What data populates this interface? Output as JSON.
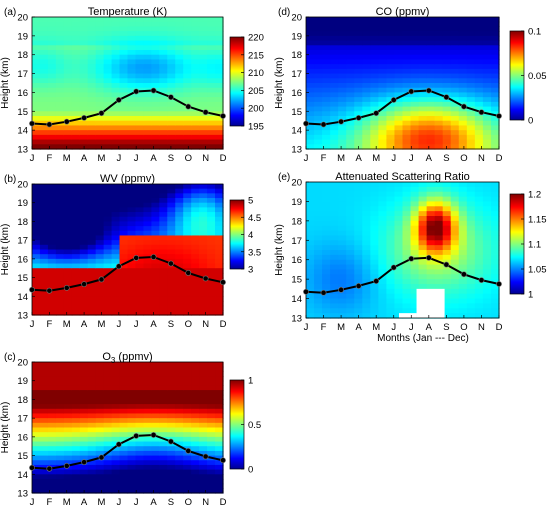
{
  "months": [
    "J",
    "F",
    "M",
    "A",
    "M",
    "J",
    "J",
    "A",
    "S",
    "O",
    "N",
    "D"
  ],
  "common": {
    "ylabel": "Height (km)",
    "ylim": [
      13,
      20
    ],
    "yticks": [
      13,
      14,
      15,
      16,
      17,
      18,
      19,
      20
    ],
    "tropopause": [
      14.35,
      14.3,
      14.45,
      14.65,
      14.9,
      15.6,
      16.05,
      16.1,
      15.75,
      15.25,
      14.95,
      14.75
    ]
  },
  "x_axis_label": "Months (Jan --- Dec)",
  "chart_data": [
    {
      "type": "heatmap",
      "panel": "(a)",
      "title": "Temperature (K)",
      "colorbar": {
        "range": [
          195,
          220
        ],
        "ticks": [
          195,
          200,
          205,
          210,
          215,
          220
        ]
      }
    },
    {
      "type": "heatmap",
      "panel": "(b)",
      "title": "WV  (ppmv)",
      "colorbar": {
        "range": [
          3,
          5
        ],
        "ticks": [
          3,
          3.5,
          4,
          4.5,
          5
        ]
      }
    },
    {
      "type": "heatmap",
      "panel": "(c)",
      "title": "O3 (ppmv)",
      "title_main": "O",
      "title_sub": "3",
      "title_unit": " (ppmv)",
      "colorbar": {
        "range": [
          0,
          1
        ],
        "ticks": [
          0,
          0.5,
          1
        ]
      }
    },
    {
      "type": "heatmap",
      "panel": "(d)",
      "title": "CO (ppmv)",
      "colorbar": {
        "range": [
          0,
          0.1
        ],
        "ticks": [
          0,
          0.05,
          0.1
        ]
      }
    },
    {
      "type": "heatmap",
      "panel": "(e)",
      "title": "Attenuated Scattering Ratio",
      "colorbar": {
        "range": [
          1,
          1.2
        ],
        "ticks": [
          1,
          1.05,
          1.1,
          1.15,
          1.2
        ]
      }
    }
  ]
}
